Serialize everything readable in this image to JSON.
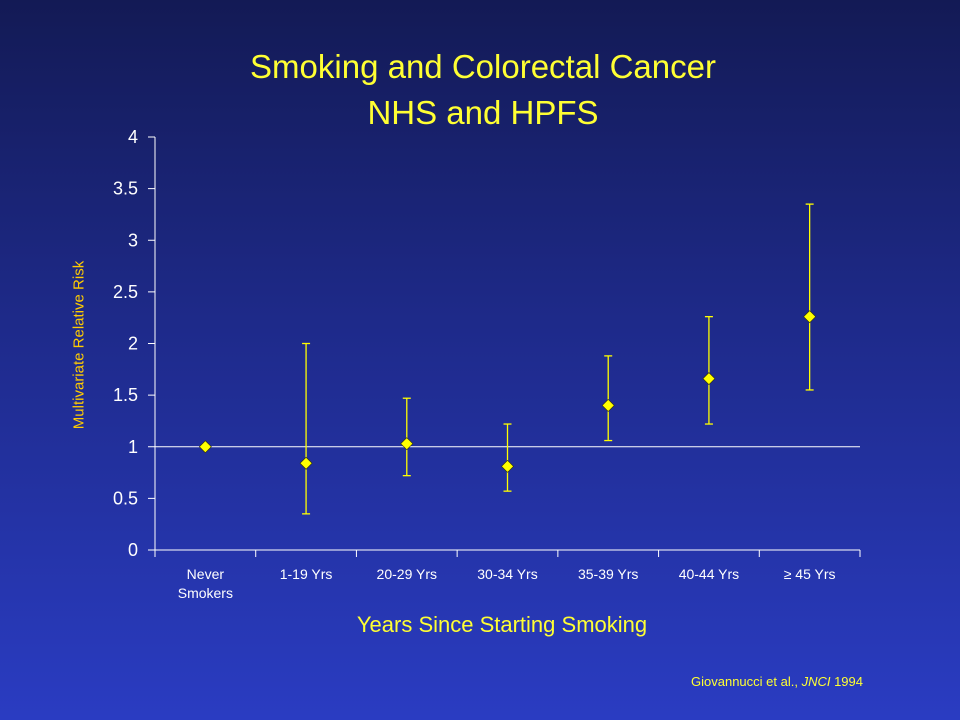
{
  "chart_data": {
    "type": "scatter",
    "title": "Smoking and Colorectal Cancer",
    "subtitle": "NHS and HPFS",
    "xlabel": "Years Since Starting Smoking",
    "ylabel": "Multivariate Relative Risk",
    "categories": [
      [
        "Never",
        "Smokers"
      ],
      [
        "1-19 Yrs"
      ],
      [
        "20-29 Yrs"
      ],
      [
        "30-34 Yrs"
      ],
      [
        "35-39 Yrs"
      ],
      [
        "40-44 Yrs"
      ],
      [
        "≥ 45 Yrs"
      ]
    ],
    "values": [
      1.0,
      0.84,
      1.03,
      0.81,
      1.4,
      1.66,
      2.26
    ],
    "ci_lower": [
      null,
      0.35,
      0.72,
      0.57,
      1.06,
      1.22,
      1.55
    ],
    "ci_upper": [
      null,
      2.0,
      1.47,
      1.22,
      1.88,
      2.26,
      3.35
    ],
    "ylim": [
      0,
      4
    ],
    "yticks": [
      0,
      0.5,
      1,
      1.5,
      2,
      2.5,
      3,
      3.5,
      4
    ],
    "ytick_labels": [
      "0",
      "0.5",
      "1",
      "1.5",
      "2",
      "2.5",
      "3",
      "3.5",
      "4"
    ],
    "reference_line": 1,
    "grid": false,
    "marker": "diamond",
    "colors": {
      "marker": "#ffff00",
      "axis": "#ffffff",
      "title": "#ffff33",
      "ylabel": "#ffcc00"
    }
  },
  "citation": {
    "authors": "Giovannucci et al., ",
    "journal": "JNCI",
    "year": " 1994"
  }
}
